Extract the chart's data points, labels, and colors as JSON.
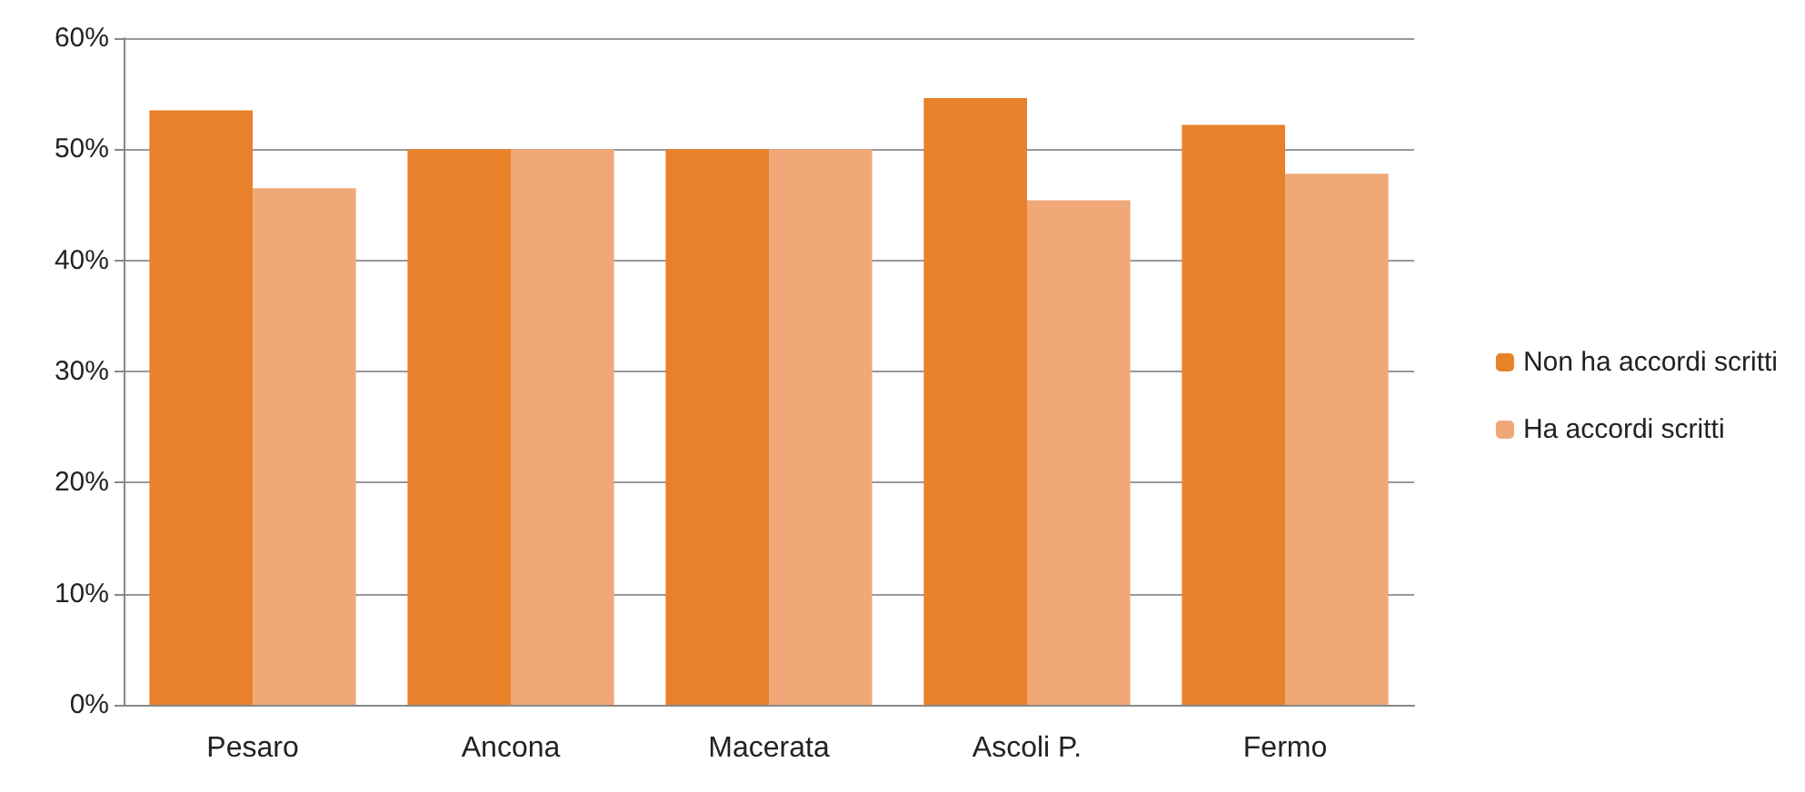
{
  "chart_data": {
    "type": "bar",
    "categories": [
      "Pesaro",
      "Ancona",
      "Macerata",
      "Ascoli P.",
      "Fermo"
    ],
    "series": [
      {
        "name": "Non ha accordi scritti",
        "color": "#e8822a",
        "values": [
          53.5,
          50,
          50,
          54.6,
          52.2
        ]
      },
      {
        "name": "Ha accordi scritti",
        "color": "#f0a878",
        "values": [
          46.5,
          50,
          50,
          45.4,
          47.8
        ]
      }
    ],
    "ylim": [
      0,
      60
    ],
    "yticks": [
      {
        "value": 0,
        "label": "0%"
      },
      {
        "value": 10,
        "label": "10%"
      },
      {
        "value": 20,
        "label": "20%"
      },
      {
        "value": 30,
        "label": "30%"
      },
      {
        "value": 40,
        "label": "40%"
      },
      {
        "value": 50,
        "label": "50%"
      },
      {
        "value": 60,
        "label": "60%"
      }
    ],
    "grid": "y",
    "legend": "right"
  }
}
